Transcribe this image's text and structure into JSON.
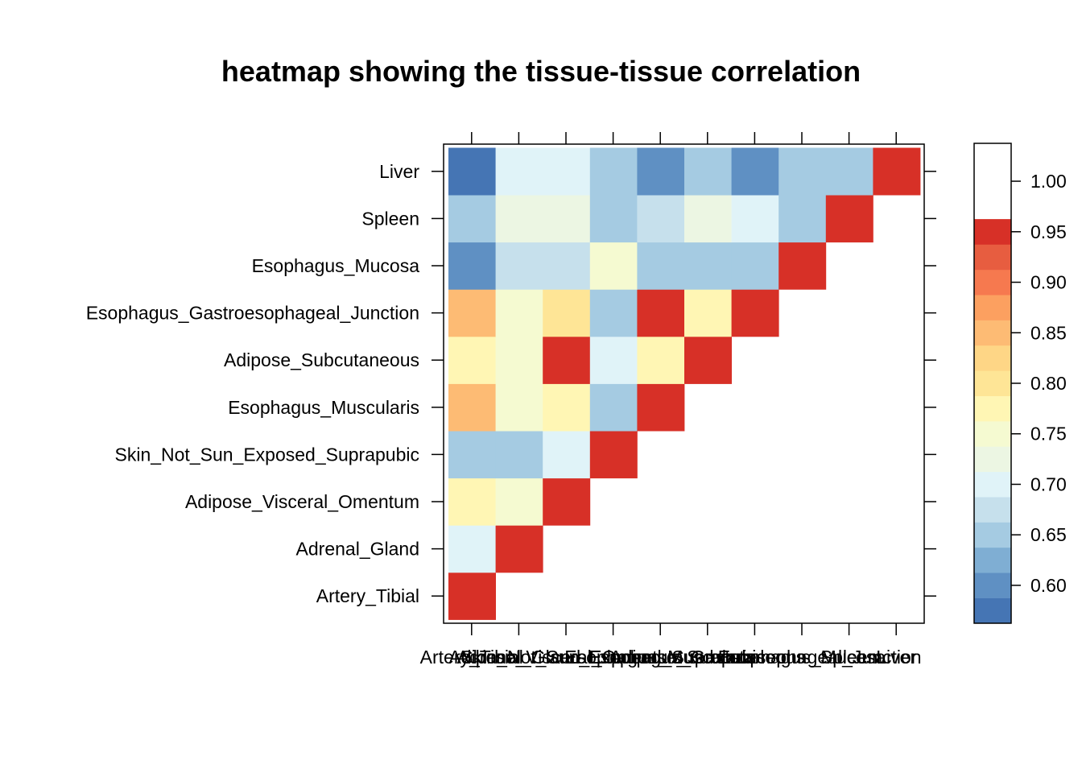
{
  "chart_data": {
    "type": "heatmap",
    "title": "heatmap showing the tissue-tissue correlation",
    "xlabel": "",
    "ylabel": "",
    "tissues": [
      "Artery_Tibial",
      "Adrenal_Gland",
      "Adipose_Visceral_Omentum",
      "Skin_Not_Sun_Exposed_Suprapubic",
      "Esophagus_Muscularis",
      "Adipose_Subcutaneous",
      "Esophagus_Gastroesophageal_Junction",
      "Esophagus_Mucosa",
      "Spleen",
      "Liver"
    ],
    "columns": [
      "Artery_Tibial",
      "Adrenal_Gland",
      "Adipose_Visceral_Omentum",
      "Skin_Not_Sun_Exposed_Suprapubic",
      "Esophagus_Muscularis",
      "Adipose_Subcutaneous",
      "Esophagus_Gastroesophageal_Junction",
      "Esophagus_Mucosa",
      "Spleen",
      "Liver"
    ],
    "rows": [
      {
        "tissue": "Artery_Tibial",
        "values": [
          1.0,
          null,
          null,
          null,
          null,
          null,
          null,
          null,
          null,
          null
        ]
      },
      {
        "tissue": "Adrenal_Gland",
        "values": [
          0.7,
          1.0,
          null,
          null,
          null,
          null,
          null,
          null,
          null,
          null
        ]
      },
      {
        "tissue": "Adipose_Visceral_Omentum",
        "values": [
          0.78,
          0.76,
          1.0,
          null,
          null,
          null,
          null,
          null,
          null,
          null
        ]
      },
      {
        "tissue": "Skin_Not_Sun_Exposed_Suprapubic",
        "values": [
          0.65,
          0.65,
          0.7,
          1.0,
          null,
          null,
          null,
          null,
          null,
          null
        ]
      },
      {
        "tissue": "Esophagus_Muscularis",
        "values": [
          0.84,
          0.76,
          0.78,
          0.65,
          1.0,
          null,
          null,
          null,
          null,
          null
        ]
      },
      {
        "tissue": "Adipose_Subcutaneous",
        "values": [
          0.78,
          0.76,
          0.96,
          0.7,
          0.78,
          1.0,
          null,
          null,
          null,
          null
        ]
      },
      {
        "tissue": "Esophagus_Gastroesophageal_Junction",
        "values": [
          0.84,
          0.76,
          0.81,
          0.65,
          1.0,
          0.78,
          1.0,
          null,
          null,
          null
        ]
      },
      {
        "tissue": "Esophagus_Mucosa",
        "values": [
          0.61,
          0.68,
          0.68,
          0.76,
          0.65,
          0.65,
          0.65,
          1.0,
          null,
          null
        ]
      },
      {
        "tissue": "Spleen",
        "values": [
          0.65,
          0.73,
          0.73,
          0.65,
          0.68,
          0.73,
          0.7,
          0.65,
          1.0,
          null
        ]
      },
      {
        "tissue": "Liver",
        "values": [
          0.58,
          0.7,
          0.7,
          0.65,
          0.61,
          0.65,
          0.61,
          0.65,
          0.65,
          1.0
        ]
      }
    ],
    "colorkey": {
      "breaks": [
        0.5625,
        0.5875,
        0.6125,
        0.6375,
        0.6625,
        0.6875,
        0.7125,
        0.7375,
        0.7625,
        0.7875,
        0.8125,
        0.8375,
        0.8625,
        0.8875,
        0.9125,
        0.9375,
        0.9625,
        0.9875,
        1.0125,
        1.0375
      ],
      "colors": [
        "#4575b4",
        "#5f90c3",
        "#7faed3",
        "#a5cbe2",
        "#c6e0ec",
        "#e0f3f8",
        "#ecf6e3",
        "#f5fad1",
        "#fff6b4",
        "#fee596",
        "#fed686",
        "#fdbb74",
        "#fca060",
        "#f6794f",
        "#e75d40",
        "#d73027"
      ],
      "tick_values": [
        0.6,
        0.65,
        0.7,
        0.75,
        0.8,
        0.85,
        0.9,
        0.95,
        1.0
      ],
      "tick_labels": [
        "0.60",
        "0.65",
        "0.70",
        "0.75",
        "0.80",
        "0.85",
        "0.90",
        "0.95",
        "1.00"
      ]
    }
  }
}
